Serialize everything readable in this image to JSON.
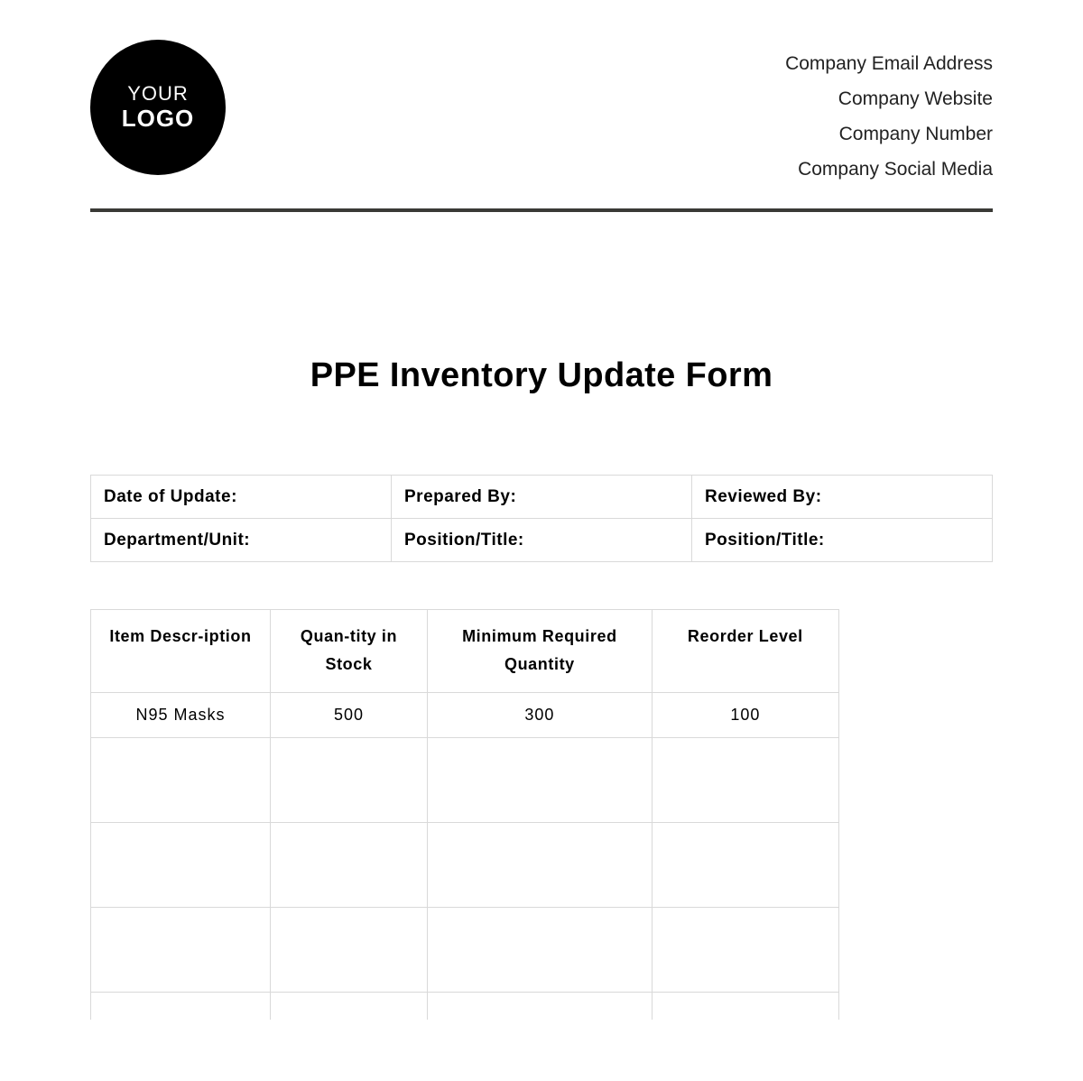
{
  "header": {
    "logo": {
      "line1": "YOUR",
      "line2": "LOGO"
    },
    "company_lines": [
      "Company Email Address",
      "Company Website",
      "Company Number",
      "Company Social Media"
    ]
  },
  "title": "PPE Inventory Update Form",
  "meta_table": {
    "rows": [
      [
        "Date of Update:",
        "Prepared By:",
        "Reviewed By:"
      ],
      [
        "Department/Unit:",
        "Position/Title:",
        "Position/Title:"
      ]
    ]
  },
  "inventory_table": {
    "columns": [
      "Item Descr-iption",
      "Quan-tity in Stock",
      "Minimum Required Quantity",
      "Reorder Level"
    ],
    "rows": [
      [
        "N95 Masks",
        "500",
        "300",
        "100"
      ],
      [
        "",
        "",
        "",
        ""
      ],
      [
        "",
        "",
        "",
        ""
      ],
      [
        "",
        "",
        "",
        ""
      ],
      [
        "",
        "",
        "",
        ""
      ]
    ]
  },
  "styling": {
    "background_color": "#ffffff",
    "text_color": "#000000",
    "border_color": "#d9d9d9",
    "divider_color": "#3a3a36",
    "logo_bg": "#000000",
    "logo_fg": "#ffffff",
    "title_fontsize": 38,
    "meta_fontsize": 19,
    "table_header_fontsize": 18,
    "table_cell_fontsize": 18
  }
}
